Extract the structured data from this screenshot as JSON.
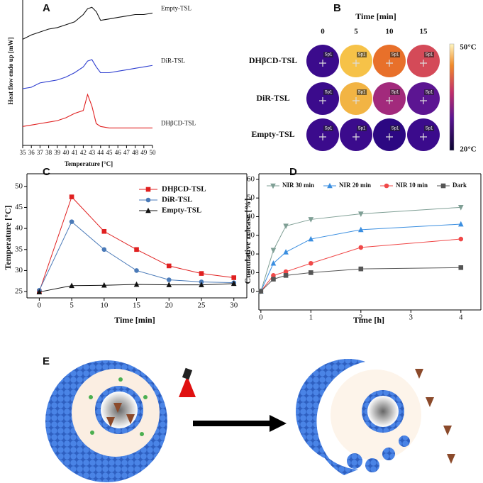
{
  "chart_data": [
    {
      "panel": "A",
      "type": "line",
      "xlabel": "Temperature [°C]",
      "ylabel": "Heat flow endo up [mW]",
      "x": [
        35,
        36,
        37,
        38,
        39,
        40,
        41,
        42,
        42.5,
        43,
        43.5,
        44,
        45,
        46,
        47,
        48,
        49,
        50
      ],
      "xlim": [
        35,
        50
      ],
      "xticks": [
        35,
        36,
        37,
        38,
        39,
        40,
        41,
        42,
        43,
        44,
        45,
        46,
        47,
        48,
        49,
        50
      ],
      "ylim": [
        0,
        100
      ],
      "series": [
        {
          "name": "Empty-TSL",
          "color": "#111111",
          "values": [
            73,
            76,
            78,
            80,
            81,
            83,
            85,
            90,
            94,
            95,
            92,
            86,
            87,
            88,
            89,
            90,
            90,
            91
          ]
        },
        {
          "name": "DiR-TSL",
          "color": "#2f3fd0",
          "values": [
            39,
            40,
            43,
            44,
            45,
            47,
            50,
            54,
            58,
            59,
            54,
            50,
            50,
            51,
            52,
            53,
            54,
            55
          ]
        },
        {
          "name": "DHβCD-TSL",
          "color": "#e02020",
          "values": [
            13,
            14,
            15,
            16,
            17,
            19,
            22,
            24,
            35,
            27,
            15,
            13,
            12,
            12,
            12,
            12,
            12,
            12
          ]
        }
      ]
    },
    {
      "panel": "C",
      "type": "line",
      "xlabel": "Time [min]",
      "ylabel": "Temperature [°C]",
      "x": [
        0,
        5,
        10,
        15,
        20,
        25,
        30
      ],
      "xlim": [
        -1.9,
        32
      ],
      "xticks": [
        0,
        5,
        10,
        15,
        20,
        25,
        30
      ],
      "ylim": [
        23.5,
        53
      ],
      "yticks": [
        25,
        30,
        35,
        40,
        45,
        50
      ],
      "legend": "top-right",
      "series": [
        {
          "name": "DHβCD-TSL",
          "color": "#e02020",
          "marker": "square",
          "values": [
            25,
            47.5,
            39.3,
            35,
            31.1,
            29.3,
            28.3
          ]
        },
        {
          "name": "DiR-TSL",
          "color": "#4a7ab8",
          "marker": "circle",
          "values": [
            25.3,
            41.6,
            35,
            30,
            27.8,
            27.3,
            27.1
          ]
        },
        {
          "name": "Empty-TSL",
          "color": "#111111",
          "marker": "triangle",
          "values": [
            24.9,
            26.4,
            26.5,
            26.7,
            26.6,
            26.6,
            26.9
          ]
        }
      ]
    },
    {
      "panel": "D",
      "type": "line",
      "xlabel": "Time [h]",
      "ylabel": "Cumulative release [%]",
      "x": [
        0,
        0.25,
        0.5,
        1,
        2,
        4
      ],
      "xlim": [
        -0.04,
        4.4
      ],
      "xticks": [
        0,
        1,
        2,
        3,
        4
      ],
      "ylim": [
        -10,
        63
      ],
      "yticks": [
        0,
        10,
        20,
        30,
        40,
        50,
        60
      ],
      "legend": "top",
      "series": [
        {
          "name": "NIR 30 min",
          "color": "#7f9f95",
          "marker": "triangle-down",
          "values": [
            0,
            22,
            35,
            38.5,
            41.5,
            45
          ]
        },
        {
          "name": "NIR 20 min",
          "color": "#3a8ee0",
          "marker": "triangle",
          "values": [
            0,
            15,
            21,
            28,
            33,
            36
          ]
        },
        {
          "name": "NIR 10 min",
          "color": "#f04848",
          "marker": "circle",
          "values": [
            0,
            8.5,
            10.5,
            15,
            23.5,
            28
          ]
        },
        {
          "name": "Dark",
          "color": "#555555",
          "marker": "square",
          "values": [
            0,
            6.5,
            8.5,
            10,
            12,
            12.7
          ]
        }
      ]
    }
  ],
  "thermal_images": {
    "panel": "B",
    "title": "Time [min]",
    "columns": [
      "0",
      "5",
      "10",
      "15"
    ],
    "rows": [
      "DHβCD-TSL",
      "DiR-TSL",
      "Empty-TSL"
    ],
    "spot": "Sp1",
    "colors": [
      [
        "#3b0b8c",
        "#f6c248",
        "#e8702a",
        "#d44a58"
      ],
      [
        "#3b0b8c",
        "#f2b444",
        "#a22a7c",
        "#5c1592"
      ],
      [
        "#3b0b8c",
        "#3b0b8c",
        "#2c0882",
        "#3b0b8c"
      ]
    ],
    "scale_max": "50°C",
    "scale_min": "20°C"
  },
  "schematic": {
    "panel": "E"
  }
}
